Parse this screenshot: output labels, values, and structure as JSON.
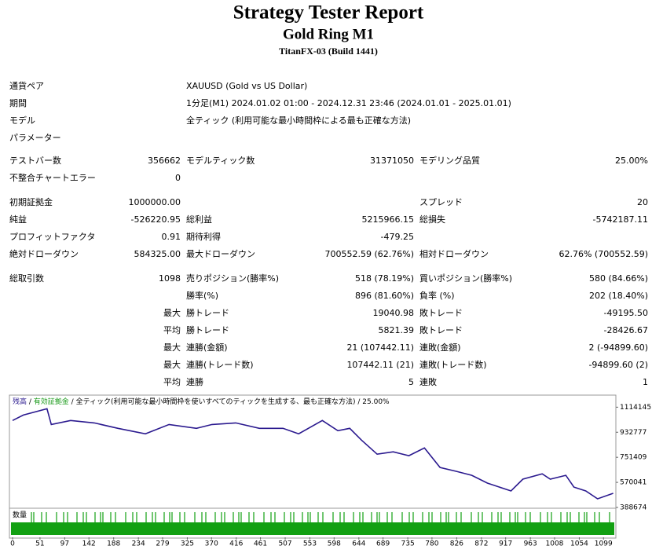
{
  "header": {
    "title": "Strategy Tester Report",
    "subtitle": "Gold Ring M1",
    "build": "TitanFX-03 (Build 1441)"
  },
  "table": {
    "groups": [
      [
        {
          "l1": "通貨ペア",
          "l2": "XAUUSD (Gold vs US Dollar)"
        },
        {
          "l1": "期間",
          "l2": "1分足(M1) 2024.01.02 01:00 - 2024.12.31 23:46 (2024.01.01 - 2025.01.01)"
        },
        {
          "l1": "モデル",
          "l2": "全ティック (利用可能な最小時間枠による最も正確な方法)"
        },
        {
          "l1": "パラメーター"
        }
      ],
      [
        {
          "l1": "テストバー数",
          "v1": "356662",
          "l2": "モデルティック数",
          "v2": "31371050",
          "l3": "モデリング品質",
          "v3": "25.00%"
        },
        {
          "l1": "不整合チャートエラー",
          "v1": "0"
        }
      ],
      [
        {
          "l1": "初期証拠金",
          "v1": "1000000.00",
          "l3": "スプレッド",
          "v3": "20"
        },
        {
          "l1": "純益",
          "v1": "-526220.95",
          "l2": "総利益",
          "v2": "5215966.15",
          "l3": "総損失",
          "v3": "-5742187.11"
        },
        {
          "l1": "プロフィットファクタ",
          "v1": "0.91",
          "l2": "期待利得",
          "v2": "-479.25"
        },
        {
          "l1": "絶対ドローダウン",
          "v1": "584325.00",
          "l2": "最大ドローダウン",
          "v2": "700552.59 (62.76%)",
          "l3": "相対ドローダウン",
          "v3": "62.76% (700552.59)"
        }
      ],
      [
        {
          "l1": "総取引数",
          "v1": "1098",
          "l2": "売りポジション(勝率%)",
          "v2": "518 (78.19%)",
          "l3": "買いポジション(勝率%)",
          "v3": "580 (84.66%)"
        },
        {
          "l2": "勝率(%)",
          "v2": "896 (81.60%)",
          "l3": "負率 (%)",
          "v3": "202 (18.40%)"
        },
        {
          "v1": "最大",
          "l2": "勝トレード",
          "v2": "19040.98",
          "l3": "敗トレード",
          "v3": "-49195.50"
        },
        {
          "v1": "平均",
          "l2": "勝トレード",
          "v2": "5821.39",
          "l3": "敗トレード",
          "v3": "-28426.67"
        },
        {
          "v1": "最大",
          "l2": "連勝(金額)",
          "v2": "21 (107442.11)",
          "l3": "連敗(金額)",
          "v3": "2 (-94899.60)"
        },
        {
          "v1": "最大",
          "l2": "連勝(トレード数)",
          "v2": "107442.11 (21)",
          "l3": "連敗(トレード数)",
          "v3": "-94899.60 (2)"
        },
        {
          "v1": "平均",
          "l2": "連勝",
          "v2": "5",
          "l3": "連敗",
          "v3": "1"
        }
      ]
    ]
  },
  "chart_data": {
    "type": "line",
    "series": [
      {
        "name": "残高",
        "color": "#2b1a8f",
        "x": [
          0,
          20,
          64,
          72,
          108,
          152,
          196,
          247,
          291,
          342,
          371,
          415,
          459,
          503,
          532,
          576,
          605,
          627,
          649,
          678,
          708,
          737,
          766,
          795,
          825,
          854,
          883,
          927,
          949,
          985,
          1000,
          1029,
          1044,
          1066,
          1088,
          1117
        ],
        "values": [
          1017800,
          1057000,
          1103000,
          989000,
          1018000,
          1000000,
          961000,
          921000,
          989000,
          961000,
          989000,
          1000000,
          961000,
          961000,
          921000,
          1018000,
          944000,
          961000,
          876000,
          774000,
          791000,
          763000,
          819000,
          678000,
          650000,
          621000,
          565000,
          508000,
          593000,
          632000,
          593000,
          621000,
          536000,
          508000,
          451000,
          491000
        ]
      }
    ],
    "equity_label": "有効証拠金",
    "equity_color": "#1a9a1a",
    "separator": " / ",
    "model_note": "全ティック(利用可能な最小時間枠を使いすべてのティックを生成する、最も正確な方法)",
    "quality": "25.00%",
    "volume_label": "数量",
    "xlim": [
      0,
      1122
    ],
    "xticks": [
      0,
      51,
      97,
      142,
      188,
      234,
      279,
      325,
      370,
      416,
      461,
      507,
      553,
      598,
      644,
      689,
      735,
      780,
      826,
      872,
      917,
      963,
      1008,
      1054,
      1099
    ],
    "ylim": [
      388674,
      1190000
    ],
    "yticks": [
      1114145,
      932777,
      751409,
      570041,
      388674
    ]
  }
}
